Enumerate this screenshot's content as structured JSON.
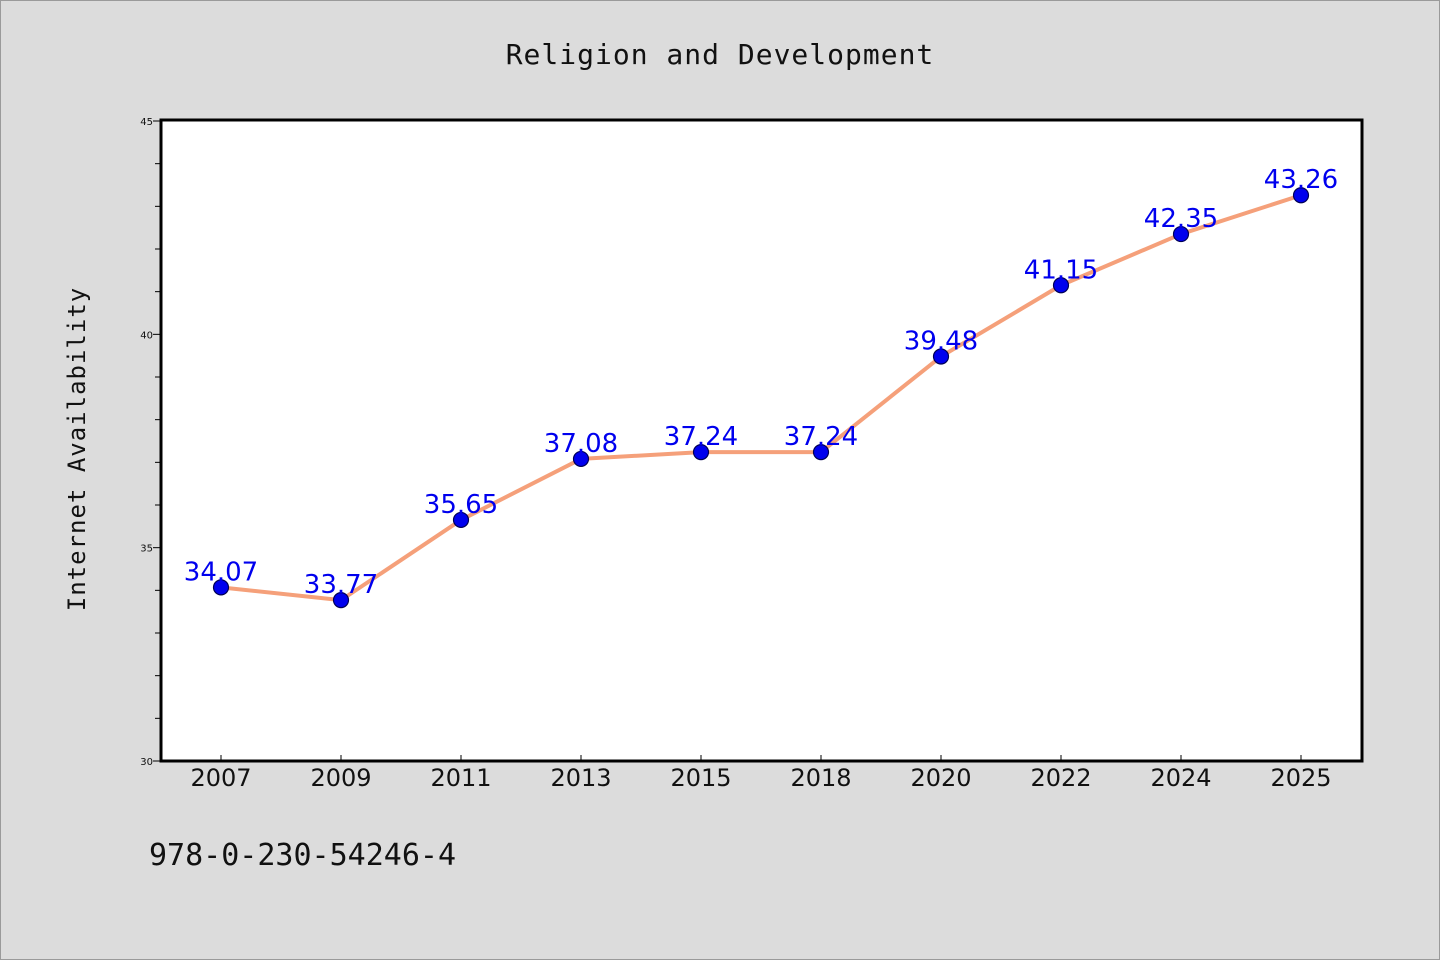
{
  "chart_data": {
    "type": "line",
    "title": "Religion and Development",
    "xlabel": "",
    "ylabel": "Internet Availability",
    "categories": [
      "2007",
      "2009",
      "2011",
      "2013",
      "2015",
      "2018",
      "2020",
      "2022",
      "2024",
      "2025"
    ],
    "values": [
      34.07,
      33.77,
      35.65,
      37.08,
      37.24,
      37.24,
      39.48,
      41.15,
      42.35,
      43.26
    ],
    "data_labels": [
      "34.07",
      "33.77",
      "35.65",
      "37.08",
      "37.24",
      "37.24",
      "39.48",
      "41.15",
      "42.35",
      "43.26"
    ],
    "ylim": [
      30,
      45
    ],
    "yticks": [
      "30",
      "35",
      "40",
      "45"
    ],
    "grid": false,
    "legend": "none",
    "colors": {
      "line": "#f5a07a",
      "marker": "#0000ee",
      "marker_edge": "#000055",
      "label": "#0000ee"
    }
  },
  "footer": {
    "isbn": "978-0-230-54246-4"
  }
}
